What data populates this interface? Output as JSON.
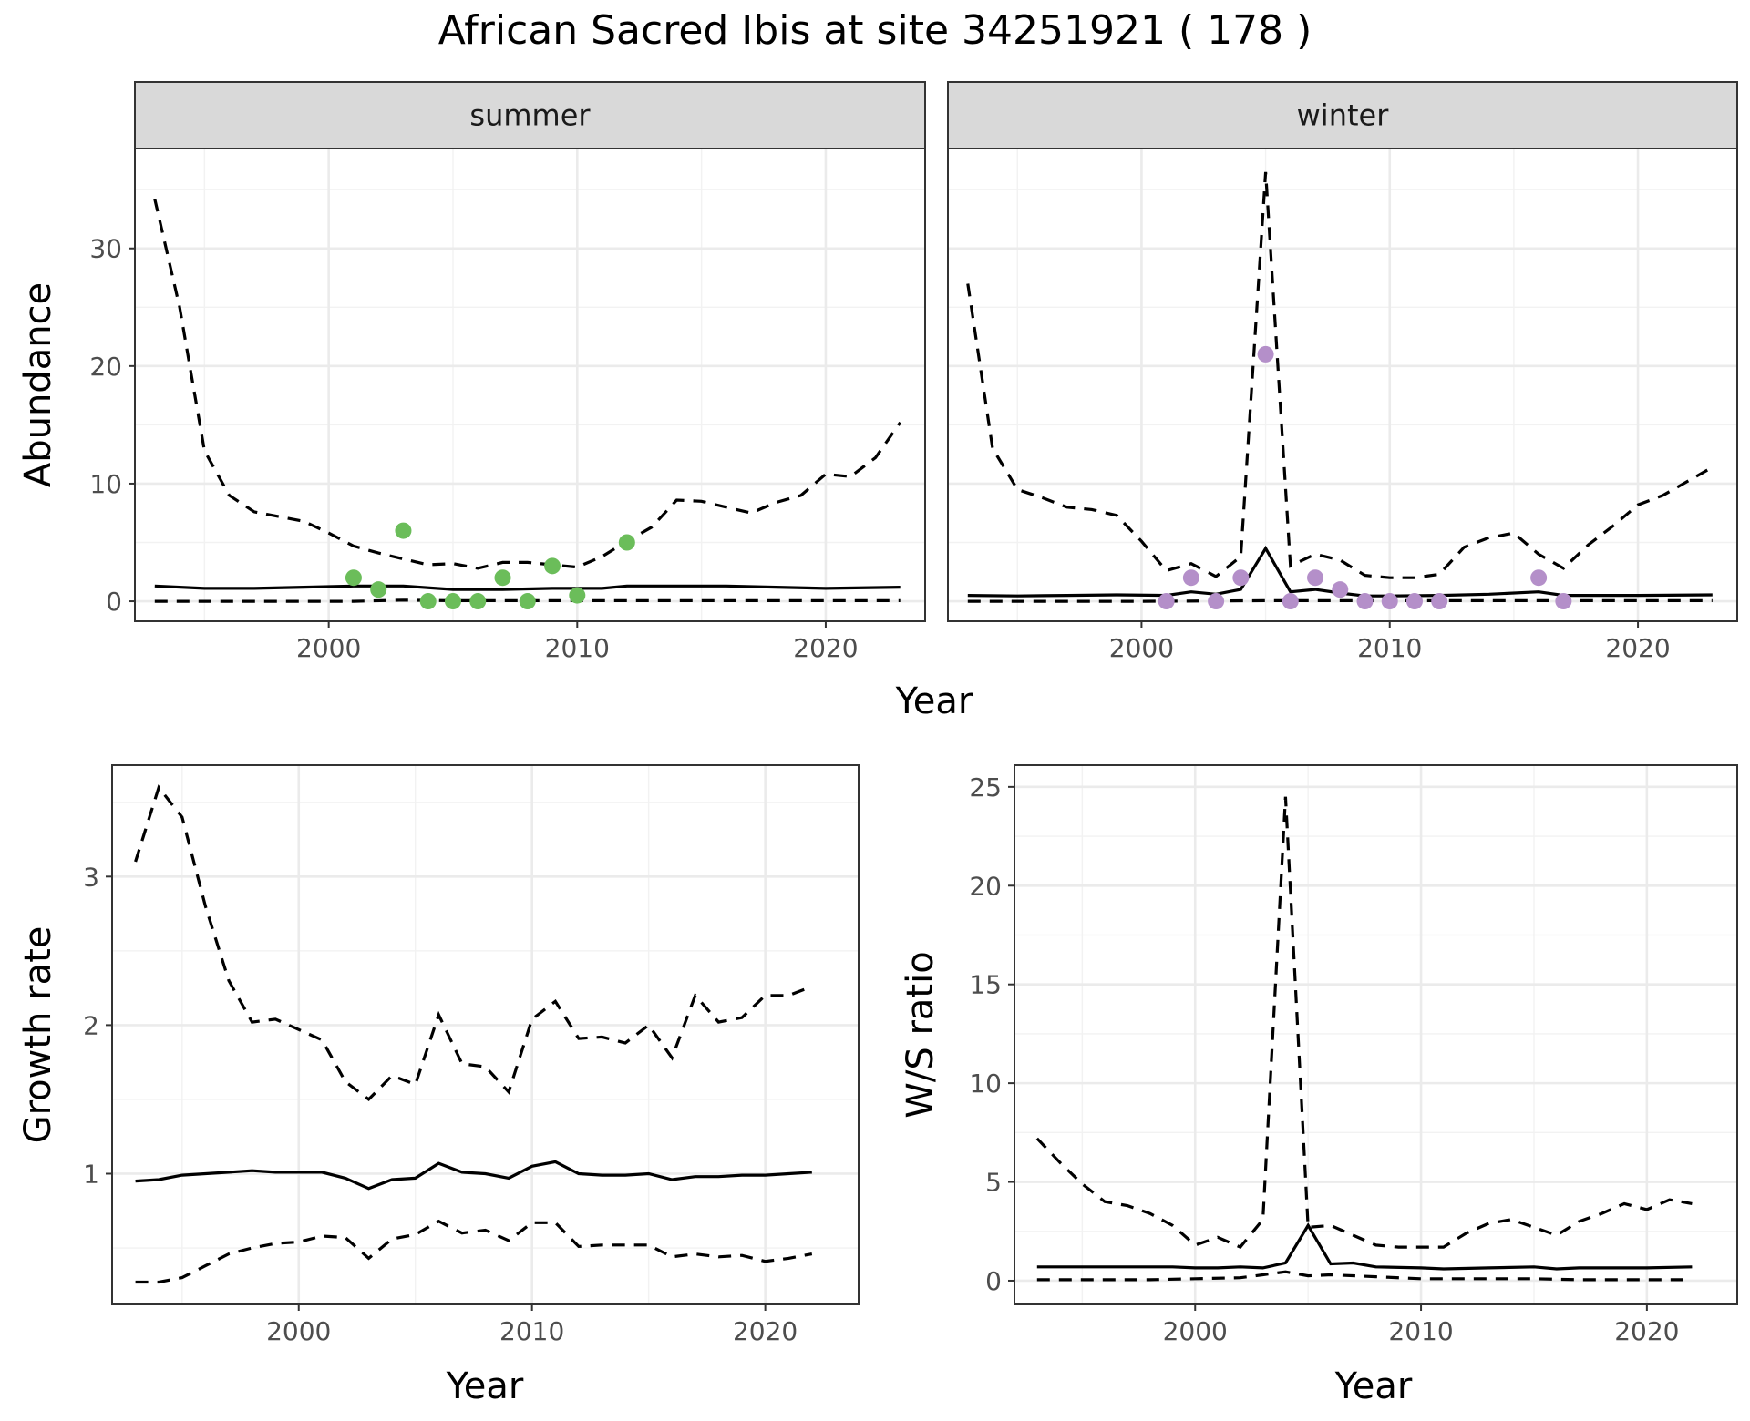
{
  "figure": {
    "title": "African Sacred Ibis at site 34251921 ( 178 )"
  },
  "chart_data": [
    {
      "id": "abundance-summer",
      "type": "line",
      "strip": "summer",
      "ylabel": "Abundance",
      "show_y_axis": true,
      "point_color": "#6bbd5a",
      "xlim": [
        1992.2,
        2024
      ],
      "ylim": [
        -1.7,
        38.5
      ],
      "x_ticks": [
        2000,
        2010,
        2020
      ],
      "y_ticks": [
        0,
        10,
        20,
        30
      ],
      "series": [
        {
          "role": "mean",
          "x": [
            1993,
            1995,
            1997,
            1999,
            2001,
            2003,
            2005,
            2007,
            2009,
            2011,
            2012,
            2014,
            2016,
            2018,
            2020,
            2023
          ],
          "y": [
            1.3,
            1.1,
            1.1,
            1.2,
            1.3,
            1.3,
            1.0,
            1.0,
            1.1,
            1.1,
            1.3,
            1.3,
            1.3,
            1.2,
            1.1,
            1.2
          ]
        },
        {
          "role": "upper",
          "x": [
            1993,
            1994,
            1995,
            1996,
            1997,
            1998,
            1999,
            2000,
            2001,
            2002,
            2003,
            2004,
            2005,
            2006,
            2007,
            2008,
            2009,
            2010,
            2011,
            2012,
            2013,
            2014,
            2015,
            2016,
            2017,
            2018,
            2019,
            2020,
            2021,
            2022,
            2023
          ],
          "y": [
            34.2,
            25,
            12.8,
            9,
            7.6,
            7.2,
            6.8,
            5.8,
            4.7,
            4.1,
            3.6,
            3.1,
            3.2,
            2.8,
            3.3,
            3.3,
            3.1,
            2.9,
            3.8,
            5.1,
            6.3,
            8.6,
            8.5,
            8,
            7.5,
            8.4,
            9,
            10.8,
            10.6,
            12.2,
            15.2
          ]
        },
        {
          "role": "lower",
          "x": [
            1993,
            2001,
            2003,
            2005,
            2010,
            2015,
            2020,
            2023
          ],
          "y": [
            0,
            0,
            0.1,
            0.05,
            0.05,
            0.05,
            0.05,
            0.05
          ]
        }
      ],
      "points": {
        "x": [
          2001,
          2002,
          2003,
          2004,
          2005,
          2006,
          2007,
          2008,
          2009,
          2010,
          2012
        ],
        "y": [
          2,
          1,
          6,
          0,
          0,
          0,
          2,
          0,
          3,
          0.5,
          5
        ]
      }
    },
    {
      "id": "abundance-winter",
      "type": "line",
      "strip": "winter",
      "ylabel": "",
      "show_y_axis": false,
      "point_color": "#b48fc9",
      "xlim": [
        1992.2,
        2024
      ],
      "ylim": [
        -1.7,
        38.5
      ],
      "x_ticks": [
        2000,
        2010,
        2020
      ],
      "y_ticks": [
        0,
        10,
        20,
        30
      ],
      "series": [
        {
          "role": "mean",
          "x": [
            1993,
            1995,
            1997,
            1999,
            2001,
            2002,
            2003,
            2004,
            2005,
            2006,
            2007,
            2008,
            2009,
            2010,
            2012,
            2014,
            2016,
            2017,
            2020,
            2023
          ],
          "y": [
            0.5,
            0.45,
            0.5,
            0.55,
            0.5,
            0.8,
            0.6,
            1.0,
            4.5,
            0.8,
            1.0,
            0.7,
            0.45,
            0.45,
            0.5,
            0.6,
            0.8,
            0.5,
            0.5,
            0.55
          ]
        },
        {
          "role": "upper",
          "x": [
            1993,
            1994,
            1995,
            1996,
            1997,
            1998,
            1999,
            2000,
            2001,
            2002,
            2003,
            2004,
            2005,
            2006,
            2007,
            2008,
            2009,
            2010,
            2011,
            2012,
            2013,
            2014,
            2015,
            2016,
            2017,
            2018,
            2019,
            2020,
            2021,
            2022,
            2023
          ],
          "y": [
            27,
            13,
            9.5,
            8.8,
            8,
            7.8,
            7.3,
            5.1,
            2.6,
            3.2,
            2.1,
            3.8,
            36.5,
            3,
            4,
            3.5,
            2.2,
            2,
            2,
            2.3,
            4.6,
            5.4,
            5.8,
            4,
            2.8,
            4.8,
            6.4,
            8.2,
            9,
            10.2,
            11.4
          ]
        },
        {
          "role": "lower",
          "x": [
            1993,
            2000,
            2005,
            2010,
            2015,
            2020,
            2023
          ],
          "y": [
            0,
            0,
            0.05,
            0.05,
            0.05,
            0.05,
            0.05
          ]
        }
      ],
      "points": {
        "x": [
          2001,
          2002,
          2003,
          2004,
          2005,
          2006,
          2007,
          2008,
          2009,
          2010,
          2011,
          2012,
          2016,
          2017
        ],
        "y": [
          0,
          2,
          0,
          2,
          21,
          0,
          2,
          1,
          0,
          0,
          0,
          0,
          2,
          0
        ]
      }
    },
    {
      "id": "growth-rate",
      "type": "line",
      "strip": "",
      "ylabel": "Growth rate",
      "show_y_axis": true,
      "xlim": [
        1992,
        2024
      ],
      "ylim": [
        0.12,
        3.75
      ],
      "x_ticks": [
        2000,
        2010,
        2020
      ],
      "y_ticks": [
        1,
        2,
        3
      ],
      "series": [
        {
          "role": "mean",
          "x": [
            1993,
            1994,
            1995,
            1996,
            1997,
            1998,
            1999,
            2000,
            2001,
            2002,
            2003,
            2004,
            2005,
            2006,
            2007,
            2008,
            2009,
            2010,
            2011,
            2012,
            2013,
            2014,
            2015,
            2016,
            2017,
            2018,
            2019,
            2020,
            2021,
            2022
          ],
          "y": [
            0.95,
            0.96,
            0.99,
            1.0,
            1.01,
            1.02,
            1.01,
            1.01,
            1.01,
            0.97,
            0.9,
            0.96,
            0.97,
            1.07,
            1.01,
            1.0,
            0.97,
            1.05,
            1.08,
            1.0,
            0.99,
            0.99,
            1.0,
            0.96,
            0.98,
            0.98,
            0.99,
            0.99,
            1.0,
            1.01
          ]
        },
        {
          "role": "upper",
          "x": [
            1993,
            1994,
            1995,
            1996,
            1997,
            1998,
            1999,
            2000,
            2001,
            2002,
            2003,
            2004,
            2005,
            2006,
            2007,
            2008,
            2009,
            2010,
            2011,
            2012,
            2013,
            2014,
            2015,
            2016,
            2017,
            2018,
            2019,
            2020,
            2021,
            2022
          ],
          "y": [
            3.1,
            3.6,
            3.4,
            2.8,
            2.3,
            2.02,
            2.04,
            1.97,
            1.9,
            1.62,
            1.5,
            1.66,
            1.6,
            2.07,
            1.74,
            1.72,
            1.55,
            2.04,
            2.16,
            1.91,
            1.92,
            1.88,
            2.0,
            1.78,
            2.2,
            2.02,
            2.05,
            2.2,
            2.2,
            2.26
          ]
        },
        {
          "role": "lower",
          "x": [
            1993,
            1994,
            1995,
            1996,
            1997,
            1998,
            1999,
            2000,
            2001,
            2002,
            2003,
            2004,
            2005,
            2006,
            2007,
            2008,
            2009,
            2010,
            2011,
            2012,
            2013,
            2014,
            2015,
            2016,
            2017,
            2018,
            2019,
            2020,
            2021,
            2022
          ],
          "y": [
            0.27,
            0.27,
            0.3,
            0.38,
            0.46,
            0.5,
            0.53,
            0.54,
            0.58,
            0.57,
            0.43,
            0.56,
            0.59,
            0.68,
            0.6,
            0.62,
            0.55,
            0.67,
            0.67,
            0.51,
            0.52,
            0.52,
            0.52,
            0.44,
            0.46,
            0.44,
            0.45,
            0.41,
            0.43,
            0.46
          ]
        }
      ]
    },
    {
      "id": "ws-ratio",
      "type": "line",
      "strip": "",
      "ylabel": "W/S ratio",
      "show_y_axis": true,
      "xlim": [
        1992,
        2024
      ],
      "ylim": [
        -1.2,
        26.1
      ],
      "x_ticks": [
        2000,
        2010,
        2020
      ],
      "y_ticks": [
        0,
        5,
        10,
        15,
        20,
        25
      ],
      "series": [
        {
          "role": "mean",
          "x": [
            1993,
            1995,
            1997,
            1999,
            2000,
            2001,
            2002,
            2003,
            2004,
            2005,
            2006,
            2007,
            2008,
            2010,
            2011,
            2013,
            2015,
            2016,
            2017,
            2020,
            2022
          ],
          "y": [
            0.7,
            0.7,
            0.7,
            0.7,
            0.65,
            0.65,
            0.7,
            0.65,
            0.9,
            2.8,
            0.85,
            0.9,
            0.7,
            0.65,
            0.6,
            0.65,
            0.7,
            0.6,
            0.65,
            0.65,
            0.7
          ]
        },
        {
          "role": "upper",
          "x": [
            1993,
            1994,
            1995,
            1996,
            1997,
            1998,
            1999,
            2000,
            2001,
            2002,
            2003,
            2004,
            2005,
            2006,
            2007,
            2008,
            2009,
            2010,
            2011,
            2012,
            2013,
            2014,
            2015,
            2016,
            2017,
            2018,
            2019,
            2020,
            2021,
            2022
          ],
          "y": [
            7.2,
            6,
            4.9,
            4,
            3.8,
            3.4,
            2.8,
            1.8,
            2.2,
            1.7,
            3.1,
            24.5,
            2.7,
            2.8,
            2.3,
            1.8,
            1.7,
            1.7,
            1.7,
            2.4,
            2.9,
            3.1,
            2.7,
            2.3,
            3,
            3.4,
            3.9,
            3.6,
            4.1,
            3.9
          ]
        },
        {
          "role": "lower",
          "x": [
            1993,
            1995,
            1998,
            2000,
            2002,
            2003,
            2004,
            2005,
            2006,
            2008,
            2010,
            2015,
            2017,
            2020,
            2022
          ],
          "y": [
            0.05,
            0.05,
            0.05,
            0.1,
            0.15,
            0.3,
            0.45,
            0.25,
            0.3,
            0.2,
            0.1,
            0.1,
            0.05,
            0.05,
            0.05
          ]
        }
      ]
    }
  ],
  "axes": {
    "year_label": "Year"
  }
}
